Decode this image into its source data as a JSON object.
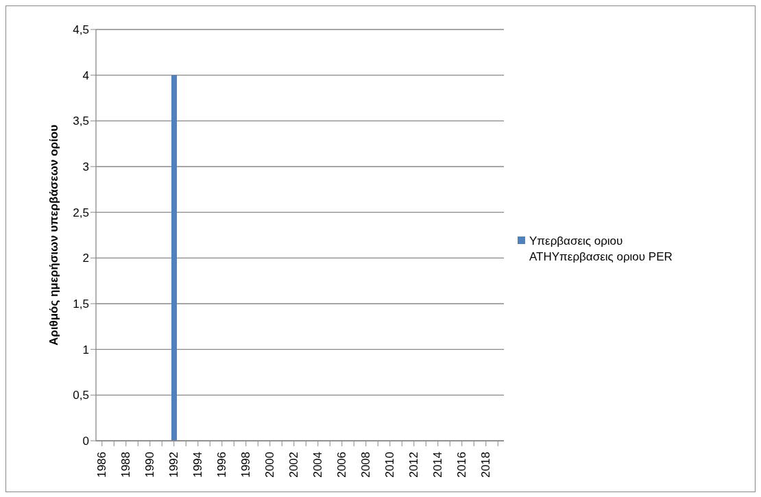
{
  "chart_data": {
    "type": "bar",
    "ylabel": "Αριθμός ημερήσιων υπερβάσεων ορίου",
    "categories": [
      "1986",
      null,
      "1988",
      null,
      "1990",
      null,
      "1992",
      null,
      "1994",
      null,
      "1996",
      null,
      "1998",
      null,
      "2000",
      null,
      "2002",
      null,
      "2004",
      null,
      "2006",
      null,
      "2008",
      null,
      "2010",
      null,
      "2012",
      null,
      "2014",
      null,
      "2016",
      null,
      "2018",
      null
    ],
    "series": [
      {
        "name": "Υπερβασεις οριου ATHΥπερβασεις οριου PER",
        "color": "#4f81bd",
        "values": [
          null,
          null,
          null,
          null,
          null,
          null,
          4,
          null,
          null,
          null,
          null,
          null,
          null,
          null,
          null,
          null,
          null,
          null,
          null,
          null,
          null,
          null,
          null,
          null,
          null,
          null,
          null,
          null,
          null,
          null,
          null,
          null,
          null,
          null
        ]
      }
    ],
    "ylim": [
      0,
      4.5
    ],
    "yticks": [
      0,
      {
        "value": 0.5,
        "label": "0,5"
      },
      1,
      {
        "value": 1.5,
        "label": "1,5"
      },
      2,
      {
        "value": 2.5,
        "label": "2,5"
      },
      3,
      {
        "value": 3.5,
        "label": "3,5"
      },
      4,
      {
        "value": 4.5,
        "label": "4,5"
      }
    ],
    "grid": "y",
    "legend": "right"
  }
}
